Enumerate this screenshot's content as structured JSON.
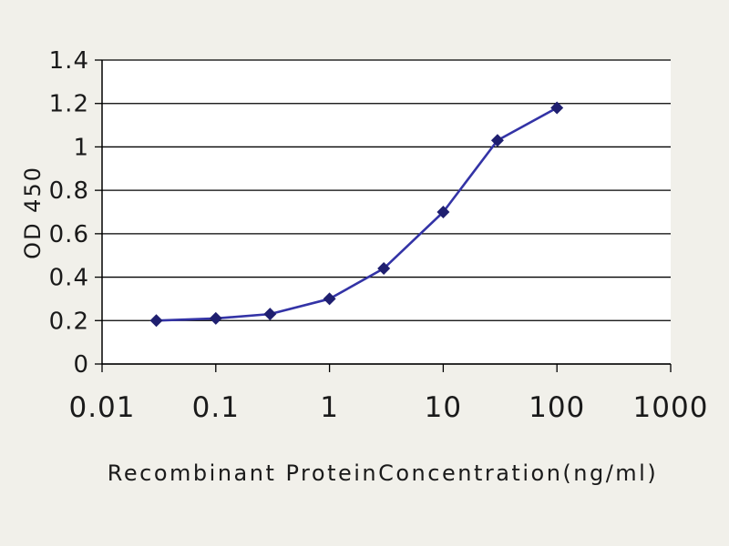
{
  "chart_data": {
    "type": "line",
    "title": "",
    "xlabel": "Recombinant ProteinConcentration(ng/ml)",
    "ylabel": "OD 450",
    "x_scale": "log",
    "xlim": [
      0.01,
      1000
    ],
    "ylim": [
      0,
      1.4
    ],
    "grid": "horizontal",
    "legend": "none",
    "x_ticks": {
      "values": [
        0.01,
        0.1,
        1,
        10,
        100,
        1000
      ],
      "labels": [
        "0.01",
        "0.1",
        "1",
        "10",
        "100",
        "1000"
      ]
    },
    "y_ticks": {
      "values": [
        0,
        0.2,
        0.4,
        0.6,
        0.8,
        1,
        1.2,
        1.4
      ],
      "labels": [
        "0",
        "0.2",
        "0.4",
        "0.6",
        "0.8",
        "1",
        "1.2",
        "1.4"
      ]
    },
    "series": [
      {
        "name": "OD 450",
        "marker": "diamond",
        "x": [
          0.03,
          0.1,
          0.3,
          1,
          3,
          10,
          30,
          100
        ],
        "y": [
          0.2,
          0.21,
          0.23,
          0.3,
          0.44,
          0.7,
          1.03,
          1.18
        ]
      }
    ],
    "colors": {
      "line": "#3333a6",
      "marker": "#1f1f70",
      "grid": "#000000",
      "axis": "#000000",
      "text": "#1a1a1a",
      "plot_bg": "#ffffff",
      "page_bg": "#f1f0ea"
    }
  }
}
